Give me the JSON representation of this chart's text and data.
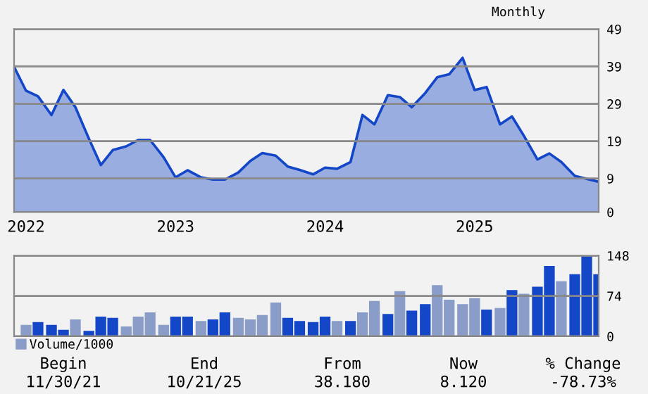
{
  "chart_data": [
    {
      "type": "area",
      "annotations": [
        "Monthly"
      ],
      "x": [
        2021.92,
        2022.0,
        2022.08,
        2022.17,
        2022.25,
        2022.33,
        2022.42,
        2022.5,
        2022.58,
        2022.67,
        2022.75,
        2022.83,
        2022.92,
        2023.0,
        2023.08,
        2023.17,
        2023.25,
        2023.33,
        2023.42,
        2023.5,
        2023.58,
        2023.67,
        2023.75,
        2023.83,
        2023.92,
        2024.0,
        2024.08,
        2024.17,
        2024.25,
        2024.33,
        2024.42,
        2024.5,
        2024.58,
        2024.67,
        2024.75,
        2024.83,
        2024.92,
        2025.0,
        2025.08,
        2025.17,
        2025.25,
        2025.33,
        2025.42,
        2025.5,
        2025.58,
        2025.67,
        2025.75,
        2025.83
      ],
      "series": [
        {
          "color": "#1446c8",
          "values": [
            38.9,
            32.5,
            31,
            26,
            32.7,
            28.1,
            19.7,
            12.6,
            16.6,
            17.6,
            19.3,
            19.3,
            14.7,
            9.3,
            11.2,
            9.3,
            8.7,
            8.7,
            10.6,
            13.7,
            15.8,
            15.1,
            12.2,
            11.3,
            10.1,
            11.9,
            11.6,
            13.4,
            26,
            23.5,
            31.3,
            30.8,
            28.1,
            31.9,
            36.1,
            36.9,
            41.3,
            32.7,
            33.5,
            23.5,
            25.6,
            20.4,
            14.1,
            15.7,
            13.4,
            9.7,
            8.9,
            8.1
          ]
        }
      ],
      "xlim": [
        2021.92,
        2025.83
      ],
      "xticks": [
        2022,
        2023,
        2024,
        2025
      ],
      "ylim": [
        0,
        49
      ],
      "yticks": [
        0,
        9,
        19,
        29,
        39,
        49
      ],
      "grid": "y",
      "legend": false
    },
    {
      "type": "bar",
      "x": [
        2022.0,
        2022.08,
        2022.17,
        2022.25,
        2022.33,
        2022.42,
        2022.5,
        2022.58,
        2022.67,
        2022.75,
        2022.83,
        2022.92,
        2023.0,
        2023.08,
        2023.17,
        2023.25,
        2023.33,
        2023.42,
        2023.5,
        2023.58,
        2023.67,
        2023.75,
        2023.83,
        2023.92,
        2024.0,
        2024.08,
        2024.17,
        2024.25,
        2024.33,
        2024.42,
        2024.5,
        2024.58,
        2024.67,
        2024.75,
        2024.83,
        2024.92,
        2025.0,
        2025.08,
        2025.17,
        2025.25,
        2025.33,
        2025.42,
        2025.5,
        2025.58,
        2025.67,
        2025.75,
        2025.83
      ],
      "series": [
        {
          "name": "Volume/1000",
          "color": "#8a9cc8",
          "values": [
            21,
            26,
            21,
            12,
            31,
            10,
            36,
            34,
            18,
            36,
            44,
            21,
            36,
            36,
            28,
            31,
            44,
            34,
            31,
            39,
            62,
            34,
            28,
            26,
            36,
            28,
            28,
            44,
            65,
            41,
            83,
            47,
            59,
            94,
            67,
            59,
            70,
            49,
            52,
            85,
            78,
            91,
            129,
            101,
            114,
            147,
            114
          ],
          "colors": [
            "#8a9cc8",
            "#1446c8",
            "#1446c8",
            "#1446c8",
            "#8a9cc8",
            "#1446c8",
            "#1446c8",
            "#1446c8",
            "#8a9cc8",
            "#8a9cc8",
            "#8a9cc8",
            "#8a9cc8",
            "#1446c8",
            "#1446c8",
            "#8a9cc8",
            "#1446c8",
            "#1446c8",
            "#8a9cc8",
            "#8a9cc8",
            "#8a9cc8",
            "#8a9cc8",
            "#1446c8",
            "#1446c8",
            "#1446c8",
            "#1446c8",
            "#8a9cc8",
            "#1446c8",
            "#8a9cc8",
            "#8a9cc8",
            "#1446c8",
            "#8a9cc8",
            "#1446c8",
            "#1446c8",
            "#8a9cc8",
            "#8a9cc8",
            "#8a9cc8",
            "#8a9cc8",
            "#1446c8",
            "#8a9cc8",
            "#1446c8",
            "#8a9cc8",
            "#1446c8",
            "#1446c8",
            "#8a9cc8",
            "#1446c8",
            "#1446c8",
            "#1446c8"
          ]
        }
      ],
      "xlim": [
        2021.92,
        2025.83
      ],
      "ylim": [
        0,
        148
      ],
      "yticks": [
        0,
        74,
        148
      ],
      "grid": "y",
      "tick_labels": "y",
      "legend": "bottom left",
      "annotations": [
        "Begin",
        "11/30/21",
        "End",
        "10/21/25",
        "From",
        "38.180",
        "Now",
        "8.120",
        "% Change",
        "-78.73%"
      ]
    }
  ]
}
